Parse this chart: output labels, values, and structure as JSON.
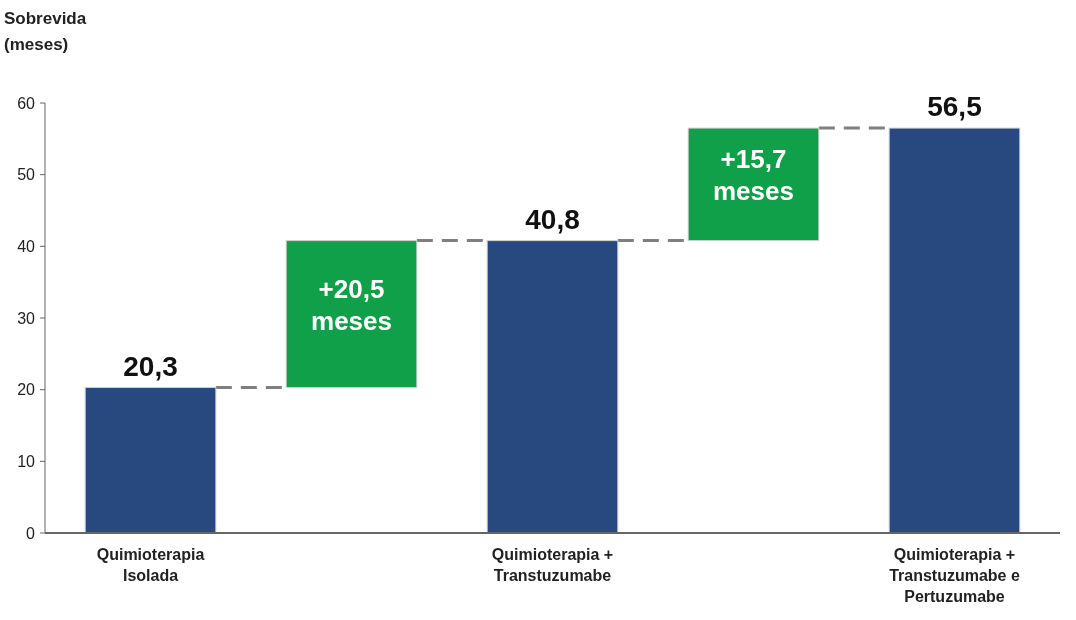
{
  "chart_data": {
    "type": "bar",
    "ylabel": "Sobrevida (meses)",
    "categories": [
      "Quimioterapia Isolada",
      null,
      "Quimioterapia + Transtuzumabe",
      null,
      "Quimioterapia + Transtuzumabe e Pertuzumabe"
    ],
    "values": [
      20.3,
      20.5,
      40.8,
      15.7,
      56.5
    ],
    "base": [
      0,
      20.3,
      0,
      40.8,
      0
    ],
    "colors": [
      "#27497f",
      "#10a04a",
      "#27497f",
      "#10a04a",
      "#27497f"
    ],
    "value_labels": [
      "20,3",
      "+20,5 meses",
      "40,8",
      "+15,7 meses",
      "56,5"
    ],
    "ylim": [
      0,
      60
    ],
    "yticks": [
      0,
      10,
      20,
      30,
      40,
      50,
      60
    ],
    "grid": false
  }
}
